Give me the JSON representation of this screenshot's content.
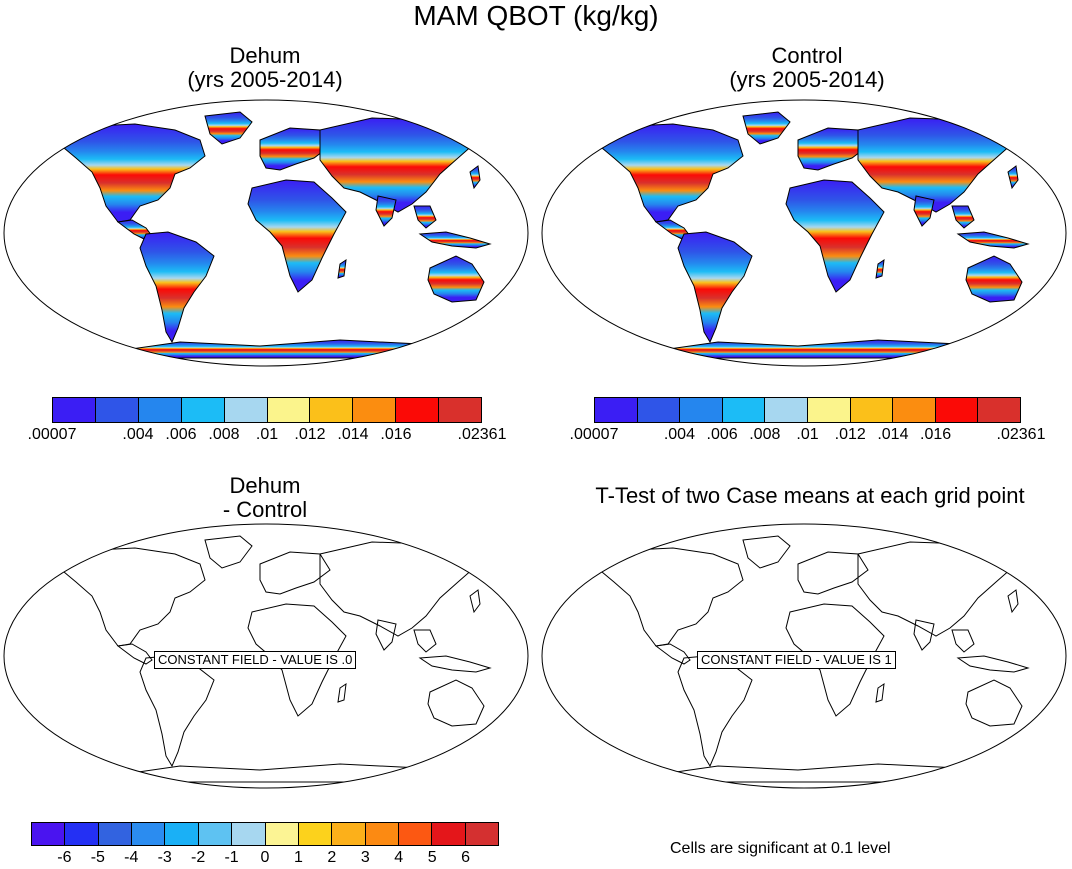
{
  "title": "MAM QBOT (kg/kg)",
  "panels": [
    {
      "title_line1": "Dehum",
      "title_line2": "(yrs 2005-2014)"
    },
    {
      "title_line1": "Control",
      "title_line2": "(yrs 2005-2014)"
    },
    {
      "title_line1": "Dehum",
      "title_line2": "- Control"
    },
    {
      "title_line1": "T-Test of two Case means at each grid point",
      "title_line2": ""
    }
  ],
  "constant_labels": [
    "CONSTANT FIELD - VALUE IS .0",
    "CONSTANT FIELD - VALUE IS 1"
  ],
  "footnote": "Cells are significant at 0.1 level",
  "colorbar_top": {
    "colors": [
      "#3b1ef4",
      "#2f55e8",
      "#2586ee",
      "#1cbcf6",
      "#a7d7f0",
      "#fbf48c",
      "#fbc01a",
      "#fb8d10",
      "#fb0a06",
      "#d9302c"
    ],
    "labels": [
      ".00007",
      ".004",
      ".006",
      ".008",
      ".01",
      ".012",
      ".014",
      ".016",
      ".02361"
    ]
  },
  "colorbar_bottom": {
    "colors": [
      "#4a14f0",
      "#2430f4",
      "#3263e0",
      "#2b8cf0",
      "#1ab0f6",
      "#5ec2f2",
      "#a7d7f0",
      "#fcf494",
      "#fcd21c",
      "#fcb01a",
      "#fc8a12",
      "#fc5812",
      "#e4161a",
      "#d43030"
    ],
    "labels": [
      "-6",
      "-5",
      "-4",
      "-3",
      "-2",
      "-1",
      "0",
      "1",
      "2",
      "3",
      "4",
      "5",
      "6"
    ]
  }
}
